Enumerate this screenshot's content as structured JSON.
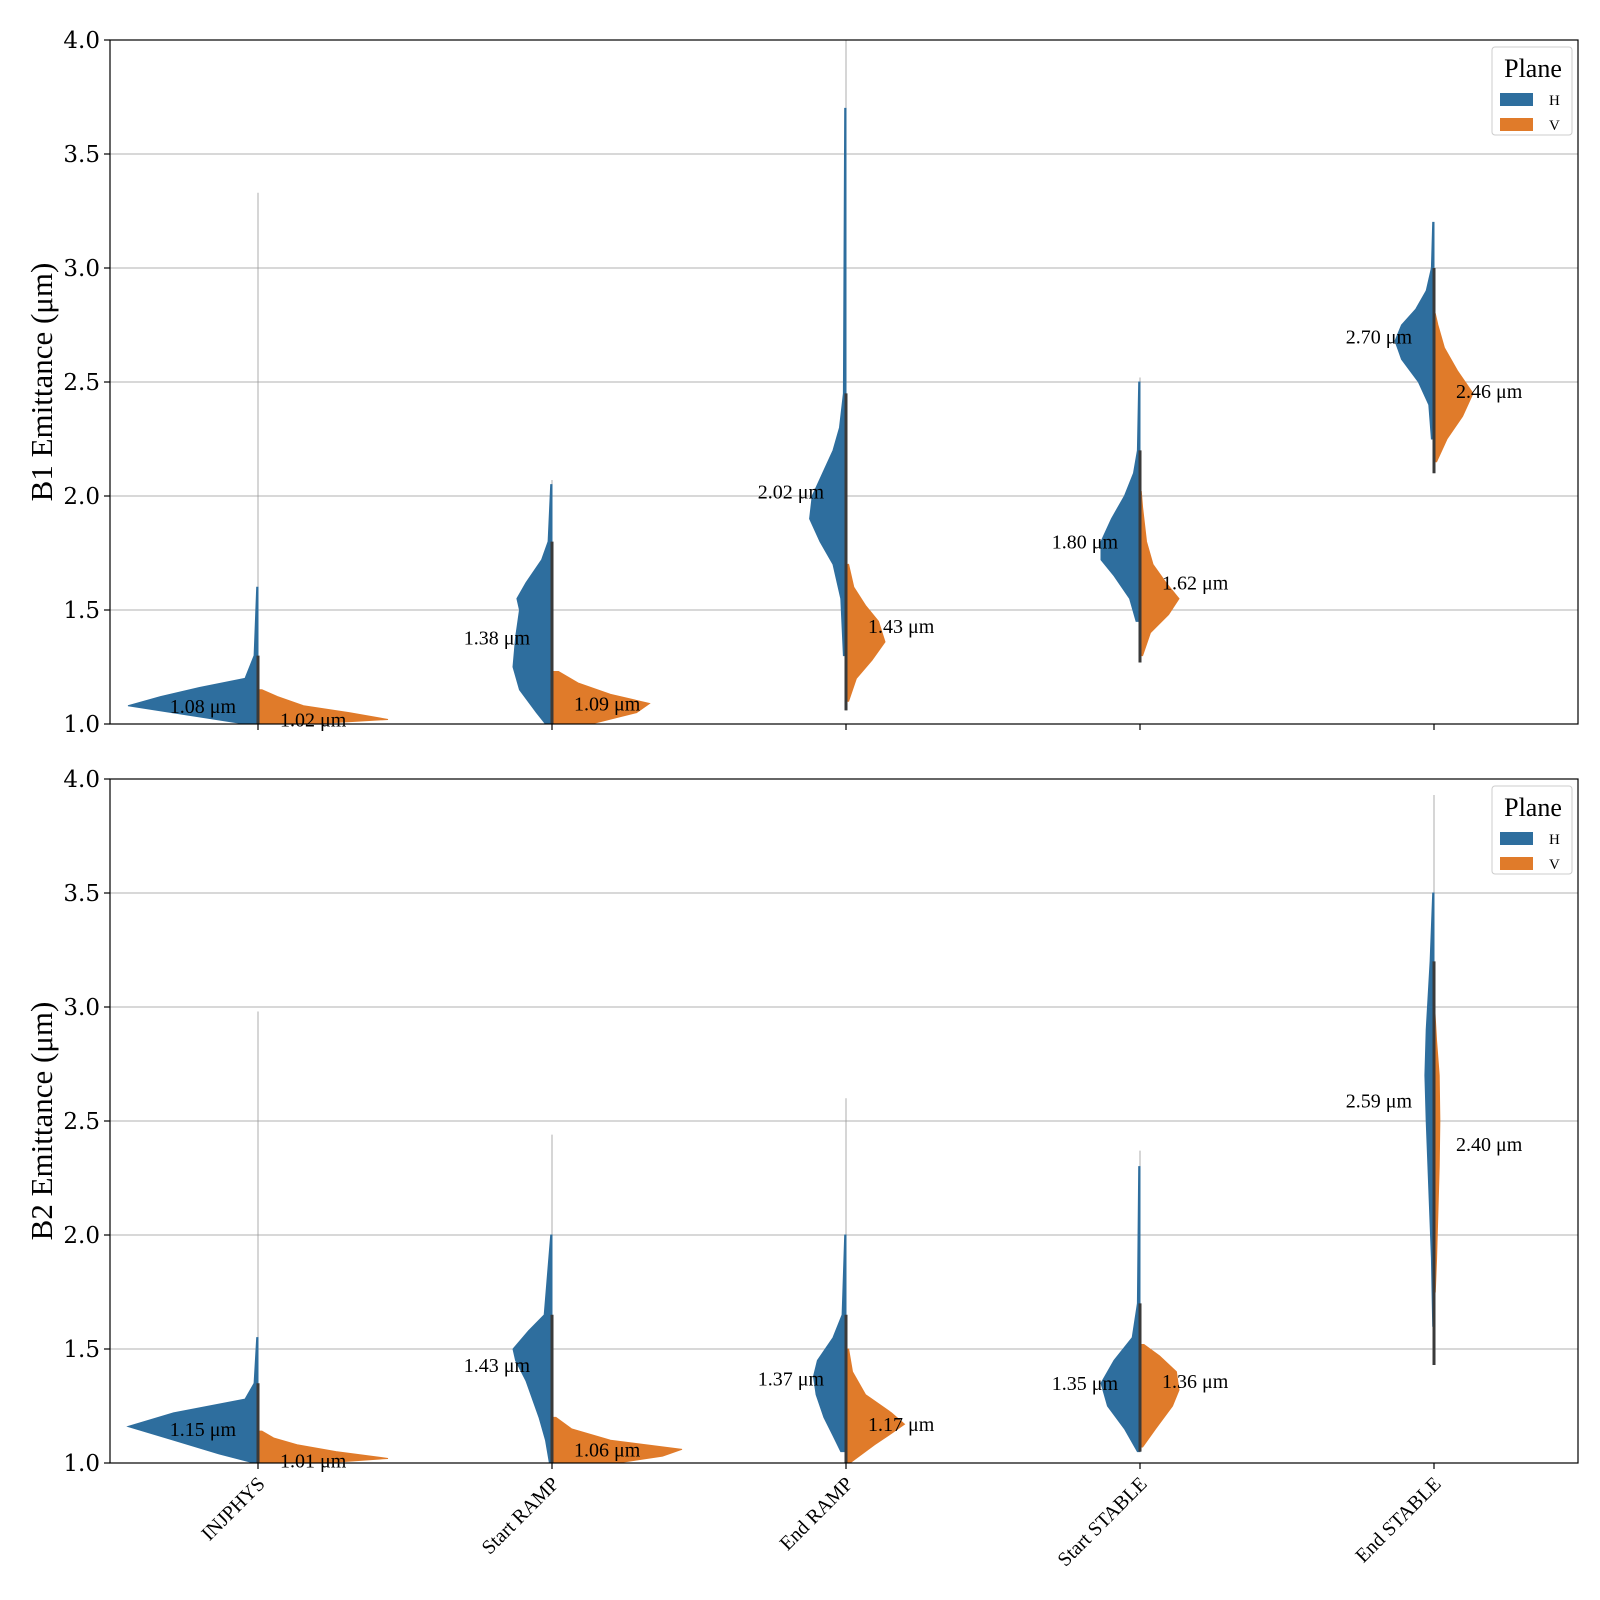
{
  "chart_data": [
    {
      "type": "violin",
      "split": true,
      "ylabel": "B1 Emittance (μm)",
      "ylim": [
        1.0,
        4.0
      ],
      "yticks": [
        "1.0",
        "1.5",
        "2.0",
        "2.5",
        "3.0",
        "3.5",
        "4.0"
      ],
      "categories": [
        "INJPHYS",
        "Start RAMP",
        "End RAMP",
        "Start STABLE",
        "End STABLE"
      ],
      "grid": true,
      "legend": {
        "title": "Plane",
        "placement": "top-right",
        "items": [
          "H",
          "V"
        ]
      },
      "series": [
        {
          "name": "H",
          "color": "#2e6e9e",
          "annotations": [
            "1.08 μm",
            "1.38 μm",
            "2.02 μm",
            "1.80 μm",
            "2.70 μm"
          ],
          "medians": [
            1.08,
            1.38,
            2.02,
            1.8,
            2.7
          ],
          "range": [
            [
              1.0,
              3.33
            ],
            [
              1.0,
              2.07
            ],
            [
              1.1,
              4.0
            ],
            [
              1.35,
              2.52
            ],
            [
              2.2,
              3.2
            ]
          ],
          "density": [
            [
              [
                1.0,
                0.1
              ],
              [
                1.04,
                0.55
              ],
              [
                1.08,
                1.0
              ],
              [
                1.12,
                0.75
              ],
              [
                1.16,
                0.45
              ],
              [
                1.2,
                0.1
              ],
              [
                1.3,
                0.03
              ],
              [
                1.6,
                0.01
              ]
            ],
            [
              [
                1.0,
                0.05
              ],
              [
                1.05,
                0.12
              ],
              [
                1.15,
                0.25
              ],
              [
                1.25,
                0.3
              ],
              [
                1.38,
                0.28
              ],
              [
                1.5,
                0.25
              ],
              [
                1.55,
                0.27
              ],
              [
                1.62,
                0.2
              ],
              [
                1.72,
                0.08
              ],
              [
                1.8,
                0.03
              ],
              [
                2.05,
                0.01
              ]
            ],
            [
              [
                1.3,
                0.02
              ],
              [
                1.55,
                0.04
              ],
              [
                1.7,
                0.1
              ],
              [
                1.8,
                0.2
              ],
              [
                1.9,
                0.28
              ],
              [
                2.0,
                0.26
              ],
              [
                2.1,
                0.18
              ],
              [
                2.2,
                0.1
              ],
              [
                2.3,
                0.05
              ],
              [
                2.45,
                0.02
              ],
              [
                3.7,
                0.01
              ]
            ],
            [
              [
                1.45,
                0.03
              ],
              [
                1.55,
                0.08
              ],
              [
                1.65,
                0.2
              ],
              [
                1.72,
                0.3
              ],
              [
                1.8,
                0.3
              ],
              [
                1.9,
                0.22
              ],
              [
                2.0,
                0.12
              ],
              [
                2.1,
                0.05
              ],
              [
                2.2,
                0.02
              ],
              [
                2.5,
                0.01
              ]
            ],
            [
              [
                2.25,
                0.02
              ],
              [
                2.4,
                0.04
              ],
              [
                2.5,
                0.12
              ],
              [
                2.6,
                0.25
              ],
              [
                2.68,
                0.3
              ],
              [
                2.75,
                0.25
              ],
              [
                2.82,
                0.14
              ],
              [
                2.9,
                0.06
              ],
              [
                3.0,
                0.02
              ],
              [
                3.2,
                0.01
              ]
            ]
          ]
        },
        {
          "name": "V",
          "color": "#e07b2a",
          "annotations": [
            "1.02 μm",
            "1.09 μm",
            "1.43 μm",
            "1.62 μm",
            "2.46 μm"
          ],
          "medians": [
            1.02,
            1.09,
            1.43,
            1.62,
            2.46
          ],
          "range": [
            [
              1.0,
              1.15
            ],
            [
              1.0,
              1.25
            ],
            [
              1.06,
              1.7
            ],
            [
              1.27,
              2.02
            ],
            [
              2.1,
              2.8
            ]
          ],
          "density": [
            [
              [
                1.0,
                0.4
              ],
              [
                1.02,
                1.0
              ],
              [
                1.05,
                0.7
              ],
              [
                1.08,
                0.35
              ],
              [
                1.12,
                0.15
              ],
              [
                1.15,
                0.03
              ]
            ],
            [
              [
                1.0,
                0.3
              ],
              [
                1.05,
                0.65
              ],
              [
                1.09,
                0.75
              ],
              [
                1.13,
                0.45
              ],
              [
                1.18,
                0.2
              ],
              [
                1.23,
                0.05
              ]
            ],
            [
              [
                1.1,
                0.02
              ],
              [
                1.2,
                0.08
              ],
              [
                1.28,
                0.2
              ],
              [
                1.36,
                0.3
              ],
              [
                1.45,
                0.25
              ],
              [
                1.52,
                0.15
              ],
              [
                1.6,
                0.06
              ],
              [
                1.7,
                0.02
              ]
            ],
            [
              [
                1.3,
                0.02
              ],
              [
                1.4,
                0.08
              ],
              [
                1.48,
                0.22
              ],
              [
                1.55,
                0.3
              ],
              [
                1.62,
                0.2
              ],
              [
                1.7,
                0.1
              ],
              [
                1.8,
                0.05
              ],
              [
                1.95,
                0.02
              ],
              [
                2.02,
                0.01
              ]
            ],
            [
              [
                2.15,
                0.02
              ],
              [
                2.25,
                0.1
              ],
              [
                2.35,
                0.22
              ],
              [
                2.45,
                0.3
              ],
              [
                2.55,
                0.18
              ],
              [
                2.65,
                0.08
              ],
              [
                2.75,
                0.03
              ],
              [
                2.8,
                0.01
              ]
            ]
          ]
        }
      ]
    },
    {
      "type": "violin",
      "split": true,
      "ylabel": "B2 Emittance (μm)",
      "ylim": [
        1.0,
        4.0
      ],
      "yticks": [
        "1.0",
        "1.5",
        "2.0",
        "2.5",
        "3.0",
        "3.5",
        "4.0"
      ],
      "categories": [
        "INJPHYS",
        "Start RAMP",
        "End RAMP",
        "Start STABLE",
        "End STABLE"
      ],
      "grid": true,
      "legend": {
        "title": "Plane",
        "placement": "top-right",
        "items": [
          "H",
          "V"
        ]
      },
      "series": [
        {
          "name": "H",
          "color": "#2e6e9e",
          "annotations": [
            "1.15 μm",
            "1.43 μm",
            "1.37 μm",
            "1.35 μm",
            "2.59 μm"
          ],
          "medians": [
            1.15,
            1.43,
            1.37,
            1.35,
            2.59
          ],
          "range": [
            [
              1.0,
              2.98
            ],
            [
              1.0,
              2.44
            ],
            [
              1.0,
              2.6
            ],
            [
              1.05,
              2.37
            ],
            [
              1.43,
              3.93
            ]
          ],
          "density": [
            [
              [
                1.0,
                0.03
              ],
              [
                1.04,
                0.3
              ],
              [
                1.1,
                0.65
              ],
              [
                1.16,
                1.0
              ],
              [
                1.22,
                0.65
              ],
              [
                1.28,
                0.1
              ],
              [
                1.35,
                0.03
              ],
              [
                1.55,
                0.01
              ]
            ],
            [
              [
                1.0,
                0.02
              ],
              [
                1.1,
                0.05
              ],
              [
                1.2,
                0.1
              ],
              [
                1.28,
                0.15
              ],
              [
                1.36,
                0.2
              ],
              [
                1.45,
                0.28
              ],
              [
                1.5,
                0.3
              ],
              [
                1.58,
                0.18
              ],
              [
                1.65,
                0.06
              ],
              [
                2.0,
                0.01
              ]
            ],
            [
              [
                1.05,
                0.04
              ],
              [
                1.12,
                0.1
              ],
              [
                1.2,
                0.17
              ],
              [
                1.3,
                0.23
              ],
              [
                1.38,
                0.25
              ],
              [
                1.45,
                0.22
              ],
              [
                1.55,
                0.1
              ],
              [
                1.65,
                0.03
              ],
              [
                2.0,
                0.01
              ]
            ],
            [
              [
                1.05,
                0.02
              ],
              [
                1.15,
                0.12
              ],
              [
                1.25,
                0.25
              ],
              [
                1.35,
                0.3
              ],
              [
                1.45,
                0.2
              ],
              [
                1.55,
                0.06
              ],
              [
                1.7,
                0.02
              ],
              [
                2.3,
                0.01
              ]
            ],
            [
              [
                1.6,
                0.01
              ],
              [
                1.9,
                0.02
              ],
              [
                2.2,
                0.04
              ],
              [
                2.5,
                0.06
              ],
              [
                2.7,
                0.07
              ],
              [
                2.9,
                0.06
              ],
              [
                3.2,
                0.03
              ],
              [
                3.5,
                0.01
              ]
            ]
          ]
        },
        {
          "name": "V",
          "color": "#e07b2a",
          "annotations": [
            "1.01 μm",
            "1.06 μm",
            "1.17 μm",
            "1.36 μm",
            "2.40 μm"
          ],
          "medians": [
            1.01,
            1.06,
            1.17,
            1.36,
            2.4
          ],
          "range": [
            [
              1.0,
              1.14
            ],
            [
              1.0,
              1.2
            ],
            [
              1.0,
              1.58
            ],
            [
              1.07,
              1.52
            ],
            [
              1.7,
              3.0
            ]
          ],
          "density": [
            [
              [
                1.0,
                0.5
              ],
              [
                1.02,
                1.0
              ],
              [
                1.05,
                0.6
              ],
              [
                1.08,
                0.3
              ],
              [
                1.11,
                0.12
              ],
              [
                1.14,
                0.03
              ]
            ],
            [
              [
                1.0,
                0.5
              ],
              [
                1.03,
                0.85
              ],
              [
                1.06,
                1.0
              ],
              [
                1.1,
                0.45
              ],
              [
                1.15,
                0.15
              ],
              [
                1.2,
                0.03
              ]
            ],
            [
              [
                1.0,
                0.03
              ],
              [
                1.08,
                0.22
              ],
              [
                1.13,
                0.35
              ],
              [
                1.17,
                0.45
              ],
              [
                1.22,
                0.35
              ],
              [
                1.3,
                0.15
              ],
              [
                1.4,
                0.05
              ],
              [
                1.5,
                0.02
              ]
            ],
            [
              [
                1.07,
                0.02
              ],
              [
                1.15,
                0.12
              ],
              [
                1.25,
                0.25
              ],
              [
                1.32,
                0.3
              ],
              [
                1.4,
                0.28
              ],
              [
                1.47,
                0.15
              ],
              [
                1.52,
                0.03
              ]
            ],
            [
              [
                1.75,
                0.01
              ],
              [
                1.9,
                0.02
              ],
              [
                2.1,
                0.03
              ],
              [
                2.3,
                0.04
              ],
              [
                2.5,
                0.045
              ],
              [
                2.7,
                0.04
              ],
              [
                2.85,
                0.02
              ],
              [
                3.0,
                0.005
              ]
            ]
          ]
        }
      ]
    }
  ]
}
